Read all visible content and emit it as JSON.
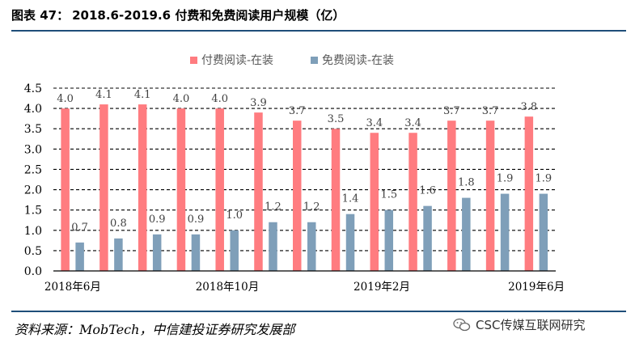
{
  "header": {
    "figure_label": "图表 47：",
    "title": "2018.6-2019.6 付费和免费阅读用户规模（亿）"
  },
  "footer": {
    "source": "资料来源：MobTech，中信建投证券研究发展部",
    "watermark": "CSC传媒互联网研究"
  },
  "colors": {
    "paid": "#ff7c80",
    "free": "#7f9fb9"
  },
  "chart_data": {
    "type": "bar",
    "title": "2018.6-2019.6 付费和免费阅读用户规模（亿）",
    "categories": [
      "2018年6月",
      "",
      "",
      "",
      "2018年10月",
      "",
      "",
      "",
      "2019年2月",
      "",
      "",
      "",
      "2019年6月"
    ],
    "series": [
      {
        "name": "付费阅读-在装",
        "values": [
          4.0,
          4.1,
          4.1,
          4.0,
          4.0,
          3.9,
          3.7,
          3.5,
          3.4,
          3.4,
          3.7,
          3.7,
          3.8
        ],
        "labels": [
          "4.0",
          "4.1",
          "4.1",
          "4.0",
          "4.0",
          "3.9",
          "3.7",
          "3.5",
          "3.4",
          "3.4",
          "3.7",
          "3.7",
          "3.8"
        ]
      },
      {
        "name": "免费阅读-在装",
        "values": [
          0.7,
          0.8,
          0.9,
          0.9,
          1.0,
          1.2,
          1.2,
          1.4,
          1.5,
          1.6,
          1.8,
          1.9,
          1.9
        ],
        "labels": [
          "0.7",
          "0.8",
          "0.9",
          "0.9",
          "1.0",
          "1.2",
          "1.2",
          "1.4",
          "1.5",
          "1.6",
          "1.8",
          "1.9",
          "1.9"
        ]
      }
    ],
    "yticks": [
      "0.0",
      "0.5",
      "1.0",
      "1.5",
      "2.0",
      "2.5",
      "3.0",
      "3.5",
      "4.0",
      "4.5"
    ],
    "ylim": [
      0,
      4.5
    ],
    "xlabel": "",
    "ylabel": "",
    "grid": true,
    "legend": "top-center"
  }
}
